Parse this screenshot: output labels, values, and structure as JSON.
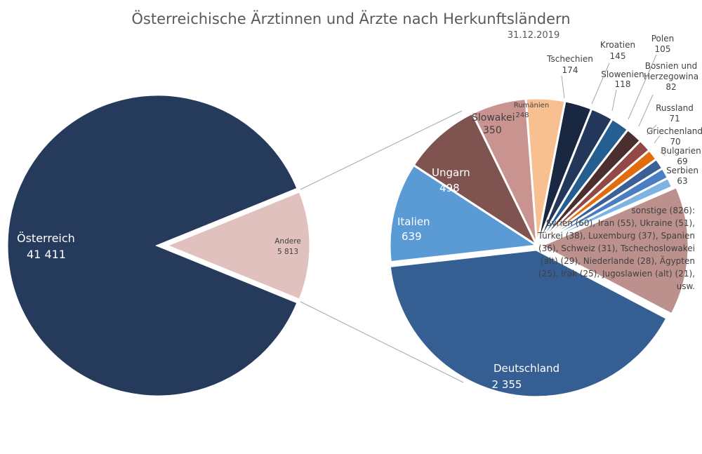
{
  "chart_data": {
    "type": "pie-of-pie",
    "title": "Österreichische Ärztinnen und Ärzte nach Herkunftsländern",
    "subtitle": "31.12.2019",
    "main_pie": {
      "categories": [
        "Österreich",
        "Andere"
      ],
      "values": [
        41411,
        5813
      ],
      "value_labels": [
        "41 411",
        "5 813"
      ],
      "colors": [
        "#263a5c",
        "#e0c1bd"
      ]
    },
    "secondary_pie": {
      "categories": [
        "Deutschland",
        "Italien",
        "Ungarn",
        "Slowakei",
        "Rumänien",
        "Tschechien",
        "Kroatien",
        "Slowenien",
        "Polen",
        "Bosnien und Herzegowina",
        "Russland",
        "Griechenland",
        "Bulgarien",
        "Serbien",
        "sonstige"
      ],
      "values": [
        2355,
        639,
        498,
        350,
        248,
        174,
        145,
        118,
        105,
        82,
        71,
        70,
        69,
        63,
        826
      ],
      "value_labels": [
        "2 355",
        "639",
        "498",
        "350",
        "248",
        "174",
        "145",
        "118",
        "105",
        "82",
        "71",
        "70",
        "69",
        "63",
        "826"
      ],
      "colors": [
        "#355f92",
        "#5b9bd5",
        "#7f5350",
        "#c9938f",
        "#f8c090",
        "#1a2740",
        "#22375a",
        "#255e91",
        "#4b2f2e",
        "#924844",
        "#e36c0a",
        "#3c5f95",
        "#4a7ec3",
        "#7db3e3",
        "#bc918d"
      ],
      "sonstige_label": [
        "sonstige (826):",
        "Syrien (60), Iran (55), Ukraine (51),",
        "Türkei (38), Luxemburg (37), Spanien",
        "(36), Schweiz (31), Tschechoslowakei",
        "(alt) (29), Niederlande (28), Ägypten",
        "(25), Irak (25), Jugoslawien (alt) (21),",
        "usw."
      ]
    },
    "legend": "none"
  }
}
